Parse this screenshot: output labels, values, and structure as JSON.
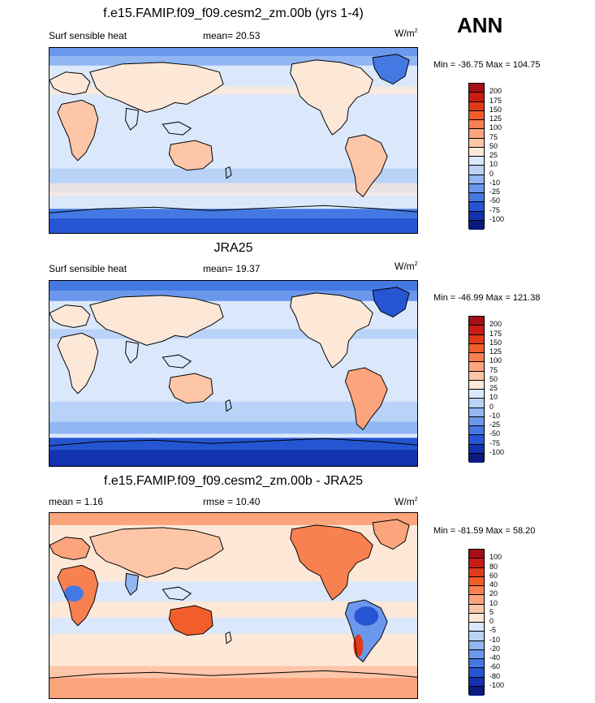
{
  "season": "ANN",
  "panels": [
    {
      "title": "f.e15.FAMIP.f09_f09.cesm2_zm.00b (yrs 1-4)",
      "left_label": "Surf sensible heat",
      "center_label": "mean=  20.53",
      "units_base": "W/m",
      "units_sup": "2",
      "minmax": "Min = -36.75 Max = 104.75",
      "levels": [
        "200",
        "175",
        "150",
        "125",
        "100",
        "75",
        "50",
        "25",
        "10",
        "0",
        "-10",
        "-25",
        "-50",
        "-75",
        "-100"
      ],
      "colors": [
        "#a50f15",
        "#c81b12",
        "#e23a18",
        "#f25e2b",
        "#f98050",
        "#fca47c",
        "#fdc6a8",
        "#fde8d8",
        "#dbe8fb",
        "#b9d2f8",
        "#91b6f2",
        "#6b98ec",
        "#4479e3",
        "#2555d2",
        "#1232b0",
        "#0a1a7f"
      ]
    },
    {
      "title": "JRA25",
      "left_label": "Surf sensible heat",
      "center_label": "mean=  19.37",
      "units_base": "W/m",
      "units_sup": "2",
      "minmax": "Min = -46.99 Max = 121.38",
      "levels": [
        "200",
        "175",
        "150",
        "125",
        "100",
        "75",
        "50",
        "25",
        "10",
        "0",
        "-10",
        "-25",
        "-50",
        "-75",
        "-100"
      ],
      "colors": [
        "#a50f15",
        "#c81b12",
        "#e23a18",
        "#f25e2b",
        "#f98050",
        "#fca47c",
        "#fdc6a8",
        "#fde8d8",
        "#dbe8fb",
        "#b9d2f8",
        "#91b6f2",
        "#6b98ec",
        "#4479e3",
        "#2555d2",
        "#1232b0",
        "#0a1a7f"
      ]
    },
    {
      "title": "f.e15.FAMIP.f09_f09.cesm2_zm.00b - JRA25",
      "left_label": "mean =   1.16",
      "center_label": "rmse =  10.40",
      "units_base": "W/m",
      "units_sup": "2",
      "minmax": "Min = -81.59 Max =  58.20",
      "levels": [
        "100",
        "80",
        "60",
        "40",
        "20",
        "10",
        "5",
        "0",
        "-5",
        "-10",
        "-20",
        "-40",
        "-60",
        "-80",
        "-100"
      ],
      "colors": [
        "#a50f15",
        "#c81b12",
        "#e23a18",
        "#f25e2b",
        "#f98050",
        "#fca47c",
        "#fdc6a8",
        "#fde8d8",
        "#dbe8fb",
        "#b9d2f8",
        "#91b6f2",
        "#6b98ec",
        "#4479e3",
        "#2555d2",
        "#1232b0",
        "#0a1a7f"
      ]
    }
  ]
}
